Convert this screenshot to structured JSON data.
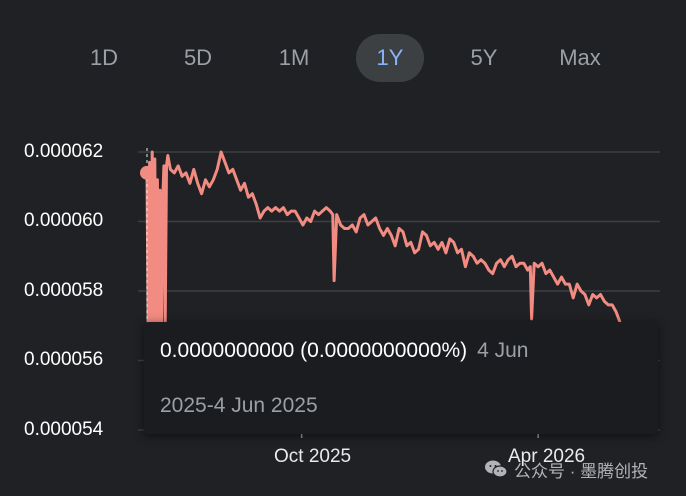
{
  "range_tabs": [
    {
      "label": "1D",
      "active": false
    },
    {
      "label": "5D",
      "active": false
    },
    {
      "label": "1M",
      "active": false
    },
    {
      "label": "1Y",
      "active": true
    },
    {
      "label": "5Y",
      "active": false
    },
    {
      "label": "Max",
      "active": false
    }
  ],
  "colors": {
    "background": "#202124",
    "line": "#f28b82",
    "gridline": "#3c4043",
    "tab_active_bg": "#3c4043",
    "tab_active_text": "#8ab4f8",
    "tab_text": "#9aa0a6"
  },
  "tooltip": {
    "value": "0.0000000000 (0.0000000000%)",
    "date_part1": "4 Jun",
    "date_part2": "2025-4 Jun 2025"
  },
  "watermark": {
    "icon": "wechat-icon",
    "text": "公众号 · 墨腾创投"
  },
  "chart_data": {
    "type": "line",
    "title": "",
    "xlabel": "",
    "ylabel": "",
    "y_ticks": [
      "0.000062",
      "0.000060",
      "0.000058",
      "0.000056",
      "0.000054"
    ],
    "ylim": [
      5.4e-05,
      6.2e-05
    ],
    "x_ticks": [
      {
        "label": "Oct 2025",
        "x": "2025-10-01"
      },
      {
        "label": "Apr 2026",
        "x": "2026-04-01"
      }
    ],
    "grid": true,
    "legend": "none",
    "hover_point": {
      "x": "2025-06-04",
      "y": 6.14e-05
    },
    "series": [
      {
        "x": [
          "2025-06-04",
          "2025-06-05",
          "2025-06-06",
          "2025-06-07",
          "2025-06-08",
          "2025-06-09",
          "2025-06-10",
          "2025-06-11",
          "2025-06-12",
          "2025-06-13",
          "2025-06-14",
          "2025-06-15",
          "2025-06-16",
          "2025-06-17",
          "2025-06-18",
          "2025-06-19",
          "2025-06-20",
          "2025-06-22",
          "2025-06-25",
          "2025-06-28",
          "2025-07-01",
          "2025-07-04",
          "2025-07-07",
          "2025-07-10",
          "2025-07-13",
          "2025-07-16",
          "2025-07-19",
          "2025-07-22",
          "2025-07-25",
          "2025-07-28",
          "2025-07-31",
          "2025-08-03",
          "2025-08-06",
          "2025-08-09",
          "2025-08-12",
          "2025-08-15",
          "2025-08-18",
          "2025-08-21",
          "2025-08-24",
          "2025-08-27",
          "2025-08-30",
          "2025-09-02",
          "2025-09-05",
          "2025-09-08",
          "2025-09-11",
          "2025-09-14",
          "2025-09-17",
          "2025-09-20",
          "2025-09-23",
          "2025-09-26",
          "2025-09-29",
          "2025-10-02",
          "2025-10-05",
          "2025-10-08",
          "2025-10-11",
          "2025-10-14",
          "2025-10-17",
          "2025-10-20",
          "2025-10-23",
          "2025-10-25",
          "2025-10-26",
          "2025-10-28",
          "2025-10-31",
          "2025-11-03",
          "2025-11-06",
          "2025-11-09",
          "2025-11-12",
          "2025-11-15",
          "2025-11-18",
          "2025-11-21",
          "2025-11-24",
          "2025-11-27",
          "2025-11-30",
          "2025-12-03",
          "2025-12-06",
          "2025-12-09",
          "2025-12-12",
          "2025-12-15",
          "2025-12-18",
          "2025-12-21",
          "2025-12-24",
          "2025-12-27",
          "2025-12-30",
          "2026-01-02",
          "2026-01-05",
          "2026-01-08",
          "2026-01-11",
          "2026-01-14",
          "2026-01-17",
          "2026-01-20",
          "2026-01-23",
          "2026-01-26",
          "2026-01-29",
          "2026-02-01",
          "2026-02-04",
          "2026-02-07",
          "2026-02-10",
          "2026-02-13",
          "2026-02-16",
          "2026-02-19",
          "2026-02-22",
          "2026-02-25",
          "2026-02-28",
          "2026-03-03",
          "2026-03-06",
          "2026-03-09",
          "2026-03-12",
          "2026-03-15",
          "2026-03-18",
          "2026-03-21",
          "2026-03-24",
          "2026-03-26",
          "2026-03-27",
          "2026-03-29",
          "2026-04-01",
          "2026-04-04",
          "2026-04-07",
          "2026-04-10",
          "2026-04-13",
          "2026-04-16",
          "2026-04-19",
          "2026-04-22",
          "2026-04-25",
          "2026-04-28",
          "2026-05-01",
          "2026-05-04",
          "2026-05-07",
          "2026-05-10",
          "2026-05-13",
          "2026-05-16",
          "2026-05-19",
          "2026-05-22",
          "2026-05-25",
          "2026-05-28",
          "2026-05-31",
          "2026-06-03"
        ],
        "values": [
          6.14e-05,
          5.63e-05,
          6.17e-05,
          5.58e-05,
          6.2e-05,
          5.62e-05,
          6.18e-05,
          5.67e-05,
          6.12e-05,
          5.68e-05,
          6.09e-05,
          5.63e-05,
          6.05e-05,
          6.16e-05,
          5.71e-05,
          6.16e-05,
          6.19e-05,
          6.15e-05,
          6.14e-05,
          6.16e-05,
          6.13e-05,
          6.14e-05,
          6.11e-05,
          6.15e-05,
          6.11e-05,
          6.08e-05,
          6.12e-05,
          6.1e-05,
          6.12e-05,
          6.15e-05,
          6.2e-05,
          6.17e-05,
          6.14e-05,
          6.15e-05,
          6.12e-05,
          6.09e-05,
          6.11e-05,
          6.07e-05,
          6.08e-05,
          6.05e-05,
          6.01e-05,
          6.03e-05,
          6.04e-05,
          6.03e-05,
          6.04e-05,
          6.03e-05,
          6.04e-05,
          6.02e-05,
          6.03e-05,
          6.03e-05,
          6.01e-05,
          5.99e-05,
          6.01e-05,
          6e-05,
          6.03e-05,
          6.02e-05,
          6.03e-05,
          6.04e-05,
          6.03e-05,
          6.02e-05,
          5.83e-05,
          6.02e-05,
          5.99e-05,
          5.98e-05,
          5.98e-05,
          5.99e-05,
          5.97e-05,
          6.01e-05,
          6.02e-05,
          5.99e-05,
          6e-05,
          6.01e-05,
          5.98e-05,
          5.96e-05,
          5.98e-05,
          5.96e-05,
          5.93e-05,
          5.98e-05,
          5.97e-05,
          5.93e-05,
          5.94e-05,
          5.91e-05,
          5.92e-05,
          5.97e-05,
          5.96e-05,
          5.93e-05,
          5.94e-05,
          5.92e-05,
          5.94e-05,
          5.91e-05,
          5.95e-05,
          5.94e-05,
          5.91e-05,
          5.92e-05,
          5.87e-05,
          5.91e-05,
          5.9e-05,
          5.88e-05,
          5.89e-05,
          5.88e-05,
          5.86e-05,
          5.85e-05,
          5.88e-05,
          5.89e-05,
          5.87e-05,
          5.89e-05,
          5.9e-05,
          5.87e-05,
          5.88e-05,
          5.88e-05,
          5.86e-05,
          5.87e-05,
          5.72e-05,
          5.88e-05,
          5.87e-05,
          5.88e-05,
          5.85e-05,
          5.86e-05,
          5.84e-05,
          5.82e-05,
          5.84e-05,
          5.82e-05,
          5.82e-05,
          5.78e-05,
          5.82e-05,
          5.8e-05,
          5.79e-05,
          5.76e-05,
          5.79e-05,
          5.78e-05,
          5.79e-05,
          5.77e-05,
          5.76e-05,
          5.76e-05,
          5.74e-05,
          5.71e-05
        ]
      }
    ]
  }
}
